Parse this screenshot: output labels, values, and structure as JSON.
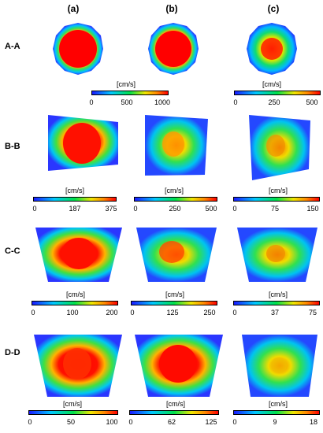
{
  "columns": [
    "(a)",
    "(b)",
    "(c)"
  ],
  "rows": [
    {
      "label": "A-A",
      "scales": [
        {
          "unit": "[cm/s]",
          "ticks": [
            "0",
            "500",
            "1000"
          ]
        },
        null,
        {
          "unit": "[cm/s]",
          "ticks": [
            "0",
            "250",
            "500"
          ]
        }
      ]
    },
    {
      "label": "B-B",
      "scales": [
        {
          "unit": "[cm/s]",
          "ticks": [
            "0",
            "187",
            "375"
          ]
        },
        {
          "unit": "[cm/s]",
          "ticks": [
            "0",
            "250",
            "500"
          ]
        },
        {
          "unit": "[cm/s]",
          "ticks": [
            "0",
            "75",
            "150"
          ]
        }
      ]
    },
    {
      "label": "C-C",
      "scales": [
        {
          "unit": "[cm/s]",
          "ticks": [
            "0",
            "100",
            "200"
          ]
        },
        {
          "unit": "[cm/s]",
          "ticks": [
            "0",
            "125",
            "250"
          ]
        },
        {
          "unit": "[cm/s]",
          "ticks": [
            "0",
            "37",
            "75"
          ]
        }
      ]
    },
    {
      "label": "D-D",
      "scales": [
        {
          "unit": "[cm/s]",
          "ticks": [
            "0",
            "50",
            "100"
          ]
        },
        {
          "unit": "[cm/s]",
          "ticks": [
            "0",
            "62",
            "125"
          ]
        },
        {
          "unit": "[cm/s]",
          "ticks": [
            "0",
            "9",
            "18"
          ]
        }
      ]
    }
  ],
  "colormap": [
    "#1a1aff",
    "#00c8ff",
    "#00e04a",
    "#f0e600",
    "#ff8a00",
    "#ff0000"
  ]
}
